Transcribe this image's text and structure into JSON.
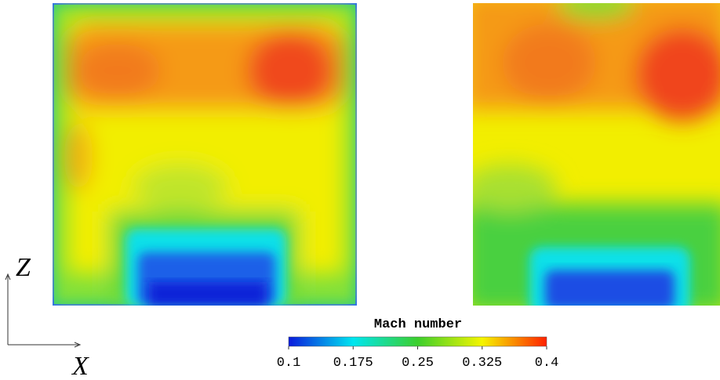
{
  "colorbar": {
    "title": "Mach number",
    "lim": [
      0.1,
      0.4
    ],
    "ticks": [
      0.1,
      0.175,
      0.25,
      0.325,
      0.4
    ],
    "colors": [
      "#0a1adc",
      "#00e6f0",
      "#3ccf2c",
      "#f5f500",
      "#ff2000"
    ]
  },
  "axis_labels": {
    "vertical": "Z",
    "horizontal": "X"
  }
}
